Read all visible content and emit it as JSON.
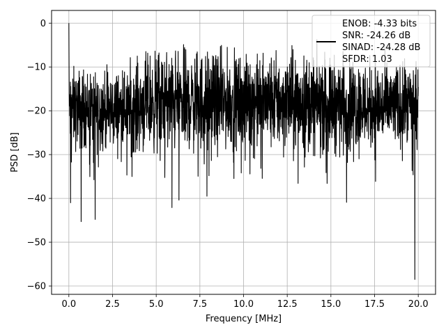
{
  "chart_data": {
    "type": "line",
    "title": "",
    "xlabel": "Frequency [MHz]",
    "ylabel": "PSD [dB]",
    "xlim": [
      -0.99,
      20.99
    ],
    "ylim": [
      -61.9,
      2.9
    ],
    "xticks": [
      0.0,
      2.5,
      5.0,
      7.5,
      10.0,
      12.5,
      15.0,
      17.5,
      20.0
    ],
    "xtick_labels": [
      "0.0",
      "2.5",
      "5.0",
      "7.5",
      "10.0",
      "12.5",
      "15.0",
      "17.5",
      "20.0"
    ],
    "yticks": [
      0,
      -10,
      -20,
      -30,
      -40,
      -50,
      -60
    ],
    "ytick_labels": [
      "0",
      "−10",
      "−20",
      "−30",
      "−40",
      "−50",
      "−60"
    ],
    "grid": true,
    "legend_position": "top-right",
    "legend_lines": [
      "ENOB: -4.33 bits",
      "SNR: -24.26 dB",
      "SINAD: -24.28 dB",
      "SFDR: 1.03"
    ],
    "series": [
      {
        "color": "#000000",
        "x_range": [
          0.0,
          20.0
        ],
        "points": 2048,
        "description_values": {
          "peak_at_0": 0.0,
          "envelope_upper": [
            [
              0.0,
              -9
            ],
            [
              2.5,
              -10
            ],
            [
              5.0,
              -5
            ],
            [
              7.5,
              -5
            ],
            [
              10.0,
              -6
            ],
            [
              12.5,
              -5
            ],
            [
              15.0,
              -6
            ],
            [
              17.5,
              -7
            ],
            [
              20.0,
              -9
            ]
          ],
          "envelope_lower": [
            [
              0.0,
              -30
            ],
            [
              2.5,
              -30
            ],
            [
              5.0,
              -31
            ],
            [
              7.5,
              -31
            ],
            [
              10.0,
              -30
            ],
            [
              12.5,
              -31
            ],
            [
              15.0,
              -31
            ],
            [
              17.5,
              -31
            ],
            [
              20.0,
              -29
            ]
          ],
          "notable_dips": [
            [
              0.1,
              -41
            ],
            [
              0.7,
              -45.3
            ],
            [
              1.5,
              -44.8
            ],
            [
              5.9,
              -42.1
            ],
            [
              6.3,
              -40.4
            ],
            [
              7.9,
              -39.5
            ],
            [
              15.9,
              -40.9
            ],
            [
              19.8,
              -58.5
            ]
          ]
        }
      }
    ]
  }
}
